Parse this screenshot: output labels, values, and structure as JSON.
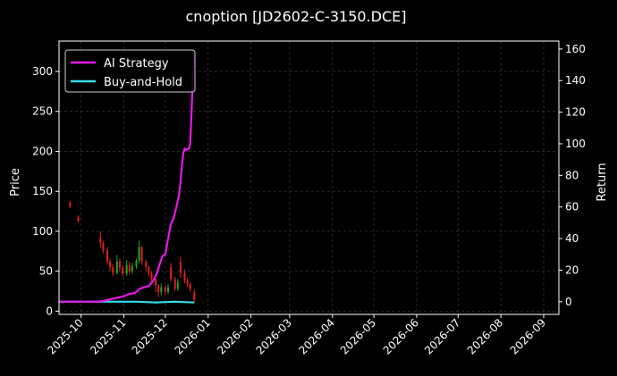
{
  "chart_data": {
    "type": "candlestick+line",
    "title": "cnoption [JD2602-C-3150.DCE]",
    "ylabel_left": "Price",
    "ylabel_right": "Return",
    "ylim_left": [
      -4,
      338
    ],
    "ylim_right": [
      -8,
      165
    ],
    "xlim": [
      "2025-09-15",
      "2026-09-12"
    ],
    "grid": true,
    "legend_position": "upper-left",
    "colors": {
      "background": "#000000",
      "grid": "#3a3a3a",
      "text": "#ffffff",
      "strategy": "#e619e6",
      "buy_hold": "#33dde8",
      "candle_up": "#1faa1f",
      "candle_down": "#e02020"
    },
    "x_ticks": [
      "2025-10",
      "2025-11",
      "2025-12",
      "2026-01",
      "2026-02",
      "2026-03",
      "2026-04",
      "2026-05",
      "2026-06",
      "2026-07",
      "2026-08",
      "2026-09"
    ],
    "y_ticks_left": [
      0,
      50,
      100,
      150,
      200,
      250,
      300
    ],
    "y_ticks_right": [
      0,
      20,
      40,
      60,
      80,
      100,
      120,
      140,
      160
    ],
    "legend": [
      "AI Strategy",
      "Buy-and-Hold"
    ],
    "candles": [
      {
        "date": "2025-09-23",
        "open": 136,
        "close": 131,
        "high": 138,
        "low": 129
      },
      {
        "date": "2025-09-29",
        "open": 118,
        "close": 113,
        "high": 120,
        "low": 111
      },
      {
        "date": "2025-10-15",
        "open": 92,
        "close": 85,
        "high": 100,
        "low": 80
      },
      {
        "date": "2025-10-17",
        "open": 85,
        "close": 76,
        "high": 88,
        "low": 72
      },
      {
        "date": "2025-10-20",
        "open": 76,
        "close": 62,
        "high": 80,
        "low": 58
      },
      {
        "date": "2025-10-22",
        "open": 62,
        "close": 55,
        "high": 66,
        "low": 50
      },
      {
        "date": "2025-10-24",
        "open": 55,
        "close": 48,
        "high": 59,
        "low": 44
      },
      {
        "date": "2025-10-27",
        "open": 48,
        "close": 62,
        "high": 70,
        "low": 46
      },
      {
        "date": "2025-10-29",
        "open": 62,
        "close": 54,
        "high": 66,
        "low": 50
      },
      {
        "date": "2025-10-31",
        "open": 54,
        "close": 47,
        "high": 58,
        "low": 43
      },
      {
        "date": "2025-11-03",
        "open": 47,
        "close": 58,
        "high": 64,
        "low": 44
      },
      {
        "date": "2025-11-05",
        "open": 58,
        "close": 50,
        "high": 62,
        "low": 46
      },
      {
        "date": "2025-11-07",
        "open": 50,
        "close": 56,
        "high": 60,
        "low": 47
      },
      {
        "date": "2025-11-10",
        "open": 56,
        "close": 63,
        "high": 66,
        "low": 53
      },
      {
        "date": "2025-11-12",
        "open": 63,
        "close": 80,
        "high": 88,
        "low": 60
      },
      {
        "date": "2025-11-14",
        "open": 80,
        "close": 62,
        "high": 82,
        "low": 58
      },
      {
        "date": "2025-11-17",
        "open": 62,
        "close": 55,
        "high": 64,
        "low": 51
      },
      {
        "date": "2025-11-19",
        "open": 55,
        "close": 47,
        "high": 57,
        "low": 43
      },
      {
        "date": "2025-11-21",
        "open": 47,
        "close": 40,
        "high": 50,
        "low": 36
      },
      {
        "date": "2025-11-24",
        "open": 40,
        "close": 32,
        "high": 42,
        "low": 24
      },
      {
        "date": "2025-11-26",
        "open": 32,
        "close": 24,
        "high": 34,
        "low": 18
      },
      {
        "date": "2025-11-28",
        "open": 24,
        "close": 30,
        "high": 35,
        "low": 20
      },
      {
        "date": "2025-12-01",
        "open": 30,
        "close": 24,
        "high": 32,
        "low": 20
      },
      {
        "date": "2025-12-03",
        "open": 24,
        "close": 30,
        "high": 34,
        "low": 21
      },
      {
        "date": "2025-12-05",
        "open": 55,
        "close": 40,
        "high": 60,
        "low": 37
      },
      {
        "date": "2025-12-08",
        "open": 40,
        "close": 28,
        "high": 43,
        "low": 25
      },
      {
        "date": "2025-12-10",
        "open": 28,
        "close": 36,
        "high": 40,
        "low": 25
      },
      {
        "date": "2025-12-12",
        "open": 62,
        "close": 48,
        "high": 68,
        "low": 42
      },
      {
        "date": "2025-12-15",
        "open": 48,
        "close": 38,
        "high": 52,
        "low": 35
      },
      {
        "date": "2025-12-17",
        "open": 38,
        "close": 34,
        "high": 41,
        "low": 30
      },
      {
        "date": "2025-12-19",
        "open": 34,
        "close": 28,
        "high": 36,
        "low": 24
      },
      {
        "date": "2025-12-22",
        "open": 24,
        "close": 14,
        "high": 27,
        "low": 11
      }
    ],
    "series": [
      {
        "name": "AI Strategy",
        "axis": "right",
        "points": [
          [
            "2025-09-15",
            0
          ],
          [
            "2025-09-25",
            0
          ],
          [
            "2025-10-05",
            0
          ],
          [
            "2025-10-13",
            0
          ],
          [
            "2025-10-17",
            0.5
          ],
          [
            "2025-10-22",
            1.5
          ],
          [
            "2025-10-27",
            2.5
          ],
          [
            "2025-11-01",
            3.5
          ],
          [
            "2025-11-05",
            5
          ],
          [
            "2025-11-09",
            5.5
          ],
          [
            "2025-11-12",
            8
          ],
          [
            "2025-11-15",
            9
          ],
          [
            "2025-11-19",
            10
          ],
          [
            "2025-11-22",
            13
          ],
          [
            "2025-11-25",
            18
          ],
          [
            "2025-11-27",
            24
          ],
          [
            "2025-11-29",
            29
          ],
          [
            "2025-12-01",
            30
          ],
          [
            "2025-12-03",
            40
          ],
          [
            "2025-12-05",
            49
          ],
          [
            "2025-12-07",
            53
          ],
          [
            "2025-12-09",
            60
          ],
          [
            "2025-12-11",
            68
          ],
          [
            "2025-12-12",
            76
          ],
          [
            "2025-12-13",
            86
          ],
          [
            "2025-12-14",
            94
          ],
          [
            "2025-12-15",
            97
          ],
          [
            "2025-12-16",
            96
          ],
          [
            "2025-12-18",
            97
          ],
          [
            "2025-12-19",
            100
          ],
          [
            "2025-12-20",
            120
          ],
          [
            "2025-12-21",
            145
          ],
          [
            "2025-12-22",
            158
          ]
        ]
      },
      {
        "name": "Buy-and-Hold",
        "axis": "right",
        "points": [
          [
            "2025-09-15",
            0
          ],
          [
            "2025-10-13",
            0
          ],
          [
            "2025-10-27",
            0
          ],
          [
            "2025-11-10",
            0
          ],
          [
            "2025-11-24",
            -0.5
          ],
          [
            "2025-12-08",
            0
          ],
          [
            "2025-12-22",
            -0.5
          ]
        ]
      }
    ]
  }
}
